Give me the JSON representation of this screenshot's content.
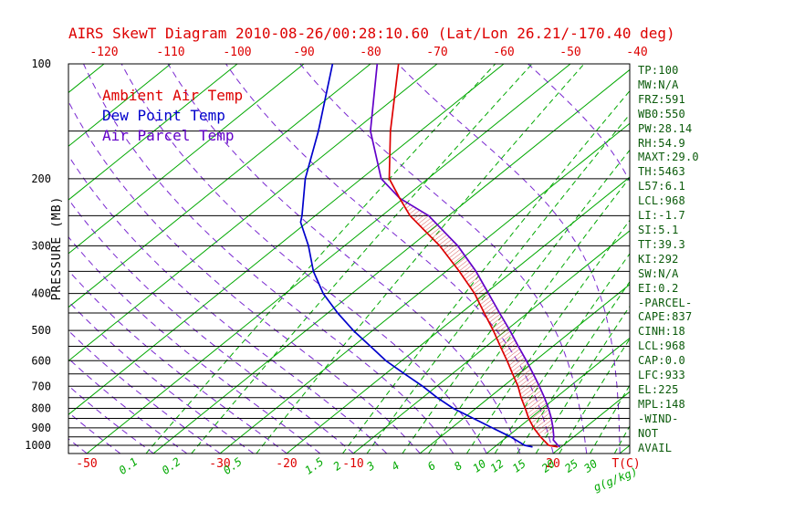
{
  "title": "AIRS SkewT Diagram 2010-08-26/00:28:10.60 (Lat/Lon 26.21/-170.40 deg)",
  "colors": {
    "title_red": "#dd0000",
    "dew_blue": "#0000cc",
    "parcel_violet": "#6200c8",
    "line_green": "#00a800",
    "axis_black": "#000000",
    "stats_green": "#0a5a0a",
    "cape_hatch_red": "#cc2222"
  },
  "legend": [
    {
      "label": "Ambient Air Temp",
      "color": "#dd0000"
    },
    {
      "label": "Dew Point Temp",
      "color": "#0000cc"
    },
    {
      "label": "Air Parcel Temp",
      "color": "#6200c8"
    }
  ],
  "stats_panel": [
    "TP:100",
    "MW:N/A",
    "FRZ:591",
    "WB0:550",
    "PW:28.14",
    "RH:54.9",
    "MAXT:29.0",
    "TH:5463",
    "L57:6.1",
    "LCL:968",
    "LI:-1.7",
    "SI:5.1",
    "TT:39.3",
    "KI:292",
    "SW:N/A",
    "EI:0.2",
    "-PARCEL-",
    "CAPE:837",
    "CINH:18",
    "LCL:968",
    "CAP:0.0",
    "LFC:933",
    "EL:225",
    "MPL:148",
    "-WIND-",
    "NOT",
    "AVAIL"
  ],
  "chart_data": {
    "type": "line",
    "title": "AIRS SkewT Diagram 2010-08-26/00:28:10.60 (Lat/Lon 26.21/-170.40 deg)",
    "x_axis": {
      "label": "T(C)",
      "skewed": true,
      "top_tick_labels_degC": [
        -120,
        -110,
        -100,
        -90,
        -80,
        -70,
        -60,
        -50,
        -40
      ],
      "bottom_tick_labels_degC": [
        -50,
        -30,
        -20,
        -10,
        20
      ]
    },
    "y_axis": {
      "label": "PRESSURE (MB)",
      "scale": "log",
      "tick_labels_mb": [
        100,
        200,
        300,
        400,
        500,
        600,
        700,
        800,
        900,
        1000
      ],
      "range_mb": [
        100,
        1050
      ]
    },
    "isotherms_degC": {
      "min": -170,
      "max": 40,
      "step": 10
    },
    "mixing_ratio_lines_g_kg": [
      0.1,
      0.2,
      0.5,
      1.5,
      2,
      3,
      4,
      6,
      8,
      10,
      12,
      15,
      20,
      25,
      30
    ],
    "mixing_ratio_unit_label": "g(g/kg)",
    "moist_adiabats_surface_degC": {
      "min": -60,
      "max": 40,
      "step": 5
    },
    "series": [
      {
        "name": "Ambient Air Temp",
        "color": "#dd0000",
        "points_mb_degC": [
          [
            1010,
            19.5
          ],
          [
            1000,
            17.8
          ],
          [
            950,
            15.0
          ],
          [
            900,
            12.3
          ],
          [
            850,
            9.8
          ],
          [
            800,
            7.4
          ],
          [
            750,
            4.8
          ],
          [
            700,
            2.2
          ],
          [
            650,
            -0.9
          ],
          [
            600,
            -4.2
          ],
          [
            550,
            -7.9
          ],
          [
            500,
            -11.9
          ],
          [
            450,
            -16.5
          ],
          [
            400,
            -21.6
          ],
          [
            350,
            -28.0
          ],
          [
            300,
            -35.7
          ],
          [
            250,
            -45.8
          ],
          [
            225,
            -50.6
          ],
          [
            200,
            -55.8
          ],
          [
            150,
            -64.5
          ],
          [
            100,
            -75.8
          ]
        ]
      },
      {
        "name": "Dew Point Temp",
        "color": "#0000cc",
        "points_mb_degC": [
          [
            1010,
            15.7
          ],
          [
            1000,
            14.2
          ],
          [
            950,
            10.5
          ],
          [
            900,
            6.1
          ],
          [
            850,
            1.5
          ],
          [
            800,
            -3.4
          ],
          [
            750,
            -7.8
          ],
          [
            700,
            -12.1
          ],
          [
            650,
            -17.1
          ],
          [
            600,
            -22.4
          ],
          [
            550,
            -27.4
          ],
          [
            500,
            -32.9
          ],
          [
            450,
            -38.5
          ],
          [
            400,
            -44.3
          ],
          [
            350,
            -49.9
          ],
          [
            300,
            -55.4
          ],
          [
            260,
            -61.0
          ],
          [
            250,
            -62.0
          ],
          [
            200,
            -68.4
          ],
          [
            150,
            -75.3
          ],
          [
            100,
            -85.7
          ]
        ]
      },
      {
        "name": "Air Parcel Temp",
        "color": "#6200c8",
        "points_mb_degC": [
          [
            1010,
            19.8
          ],
          [
            1000,
            19.2
          ],
          [
            968,
            17.5
          ],
          [
            950,
            17.0
          ],
          [
            900,
            15.2
          ],
          [
            850,
            13.2
          ],
          [
            800,
            10.9
          ],
          [
            750,
            8.3
          ],
          [
            700,
            5.4
          ],
          [
            650,
            2.2
          ],
          [
            600,
            -1.3
          ],
          [
            550,
            -5.2
          ],
          [
            500,
            -9.4
          ],
          [
            450,
            -14.2
          ],
          [
            400,
            -19.5
          ],
          [
            350,
            -25.5
          ],
          [
            300,
            -33.0
          ],
          [
            250,
            -43.0
          ],
          [
            225,
            -50.6
          ],
          [
            200,
            -57.0
          ],
          [
            150,
            -67.5
          ],
          [
            100,
            -79.0
          ]
        ]
      }
    ],
    "cape_hatch_region_mb": [
      933,
      225
    ]
  }
}
